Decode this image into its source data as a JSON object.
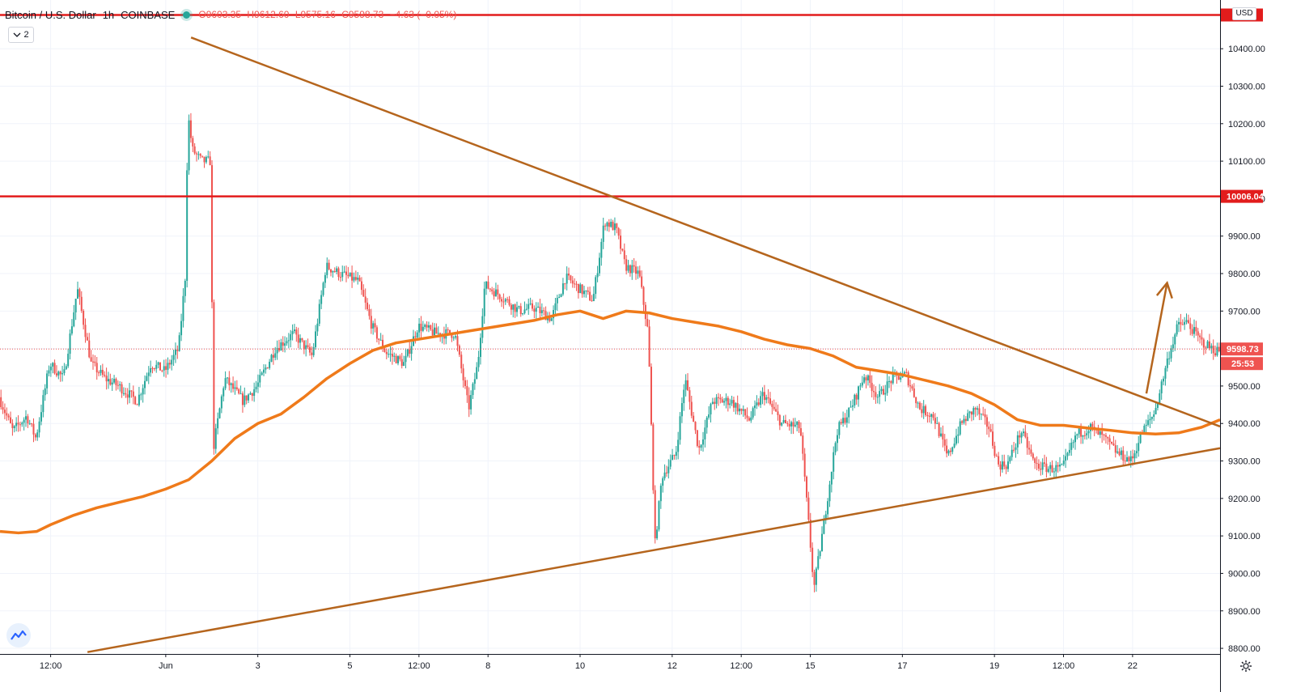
{
  "header": {
    "symbol": "Bitcoin / U.S. Dollar",
    "interval": "1h",
    "exchange": "COINBASE",
    "open": "O9603.35",
    "high": "H9612.60",
    "low": "L9575.16",
    "close": "C9598.73",
    "change": "−4.63 (−0.05%)",
    "indicator_count": "2"
  },
  "currency_label": "USD",
  "icons": {
    "logo": "tradingview-icon",
    "settings": "gear-icon",
    "collapse": "chevron-down-icon"
  },
  "colors": {
    "up": "#26a69a",
    "down": "#ef5350",
    "ma": "#ef7a1a",
    "trendline": "#b5651d",
    "resistance": "#e21c1c",
    "price_line": "#ef5350"
  },
  "chart_data": {
    "type": "candlestick",
    "symbol": "Bitcoin / U.S. Dollar",
    "timeframe": "1h",
    "ylim": [
      8785,
      10530
    ],
    "y_ticks": [
      8800,
      8900,
      9000,
      9100,
      9200,
      9300,
      9400,
      9500,
      9600,
      9700,
      9800,
      9900,
      10000,
      10100,
      10200,
      10300,
      10400
    ],
    "y_tick_labels": [
      "8800.00",
      "8900.00",
      "9000.00",
      "9100.00",
      "9200.00",
      "9300.00",
      "9400.00",
      "9500.00",
      "9600.00",
      "9700.00",
      "9800.00",
      "9900.00",
      "10000.00",
      "10100.00",
      "10200.00",
      "10300.00",
      "10400.00"
    ],
    "x_range_days": [
      -2.6,
      23.9
    ],
    "x_ticks": [
      {
        "label": "12:00",
        "day": -1.5
      },
      {
        "label": "Jun",
        "day": 1
      },
      {
        "label": "3",
        "day": 3
      },
      {
        "label": "5",
        "day": 5
      },
      {
        "label": "12:00",
        "day": 6.5
      },
      {
        "label": "8",
        "day": 8
      },
      {
        "label": "10",
        "day": 10
      },
      {
        "label": "12",
        "day": 12
      },
      {
        "label": "12:00",
        "day": 13.5
      },
      {
        "label": "15",
        "day": 15
      },
      {
        "label": "17",
        "day": 17
      },
      {
        "label": "19",
        "day": 19
      },
      {
        "label": "12:00",
        "day": 20.5
      },
      {
        "label": "22",
        "day": 22
      }
    ],
    "price_path": [
      [
        -2.6,
        9470
      ],
      [
        -2.3,
        9380
      ],
      [
        -2.0,
        9420
      ],
      [
        -1.8,
        9360
      ],
      [
        -1.5,
        9560
      ],
      [
        -1.2,
        9520
      ],
      [
        -0.9,
        9760
      ],
      [
        -0.6,
        9560
      ],
      [
        -0.3,
        9520
      ],
      [
        0.0,
        9500
      ],
      [
        0.4,
        9460
      ],
      [
        0.7,
        9560
      ],
      [
        1.0,
        9540
      ],
      [
        1.3,
        9600
      ],
      [
        1.45,
        9800
      ],
      [
        1.5,
        10230
      ],
      [
        1.6,
        10130
      ],
      [
        1.8,
        10100
      ],
      [
        2.0,
        10100
      ],
      [
        2.05,
        9330
      ],
      [
        2.3,
        9520
      ],
      [
        2.7,
        9460
      ],
      [
        3.0,
        9500
      ],
      [
        3.4,
        9600
      ],
      [
        3.8,
        9640
      ],
      [
        4.2,
        9580
      ],
      [
        4.5,
        9820
      ],
      [
        4.8,
        9800
      ],
      [
        5.2,
        9780
      ],
      [
        5.5,
        9660
      ],
      [
        5.8,
        9590
      ],
      [
        6.2,
        9560
      ],
      [
        6.5,
        9660
      ],
      [
        6.9,
        9640
      ],
      [
        7.3,
        9640
      ],
      [
        7.6,
        9440
      ],
      [
        7.8,
        9560
      ],
      [
        7.95,
        9770
      ],
      [
        8.3,
        9740
      ],
      [
        8.7,
        9700
      ],
      [
        9.0,
        9710
      ],
      [
        9.4,
        9680
      ],
      [
        9.7,
        9790
      ],
      [
        10.0,
        9760
      ],
      [
        10.3,
        9730
      ],
      [
        10.55,
        9940
      ],
      [
        10.8,
        9920
      ],
      [
        11.0,
        9820
      ],
      [
        11.3,
        9800
      ],
      [
        11.5,
        9640
      ],
      [
        11.65,
        9080
      ],
      [
        11.8,
        9260
      ],
      [
        12.1,
        9320
      ],
      [
        12.3,
        9520
      ],
      [
        12.6,
        9330
      ],
      [
        12.9,
        9460
      ],
      [
        13.3,
        9460
      ],
      [
        13.7,
        9410
      ],
      [
        14.0,
        9480
      ],
      [
        14.4,
        9400
      ],
      [
        14.8,
        9390
      ],
      [
        15.0,
        9110
      ],
      [
        15.1,
        8960
      ],
      [
        15.3,
        9120
      ],
      [
        15.6,
        9380
      ],
      [
        15.9,
        9440
      ],
      [
        16.2,
        9530
      ],
      [
        16.5,
        9470
      ],
      [
        16.8,
        9520
      ],
      [
        17.1,
        9530
      ],
      [
        17.4,
        9440
      ],
      [
        17.7,
        9420
      ],
      [
        18.0,
        9310
      ],
      [
        18.3,
        9400
      ],
      [
        18.6,
        9440
      ],
      [
        18.9,
        9390
      ],
      [
        19.1,
        9290
      ],
      [
        19.3,
        9290
      ],
      [
        19.6,
        9380
      ],
      [
        19.9,
        9290
      ],
      [
        20.2,
        9280
      ],
      [
        20.5,
        9280
      ],
      [
        20.8,
        9370
      ],
      [
        21.1,
        9390
      ],
      [
        21.4,
        9360
      ],
      [
        21.7,
        9320
      ],
      [
        22.0,
        9300
      ],
      [
        22.2,
        9370
      ],
      [
        22.5,
        9430
      ],
      [
        22.8,
        9580
      ],
      [
        23.0,
        9660
      ],
      [
        23.2,
        9670
      ],
      [
        23.5,
        9620
      ],
      [
        23.8,
        9595
      ]
    ],
    "series": [
      {
        "type": "moving-average",
        "points": [
          [
            -2.6,
            9112
          ],
          [
            -2.2,
            9108
          ],
          [
            -1.8,
            9112
          ],
          [
            -1.5,
            9130
          ],
          [
            -1.0,
            9155
          ],
          [
            -0.5,
            9175
          ],
          [
            0.0,
            9190
          ],
          [
            0.5,
            9205
          ],
          [
            1.0,
            9225
          ],
          [
            1.5,
            9250
          ],
          [
            2.0,
            9300
          ],
          [
            2.5,
            9360
          ],
          [
            3.0,
            9400
          ],
          [
            3.5,
            9425
          ],
          [
            4.0,
            9470
          ],
          [
            4.5,
            9520
          ],
          [
            5.0,
            9560
          ],
          [
            5.5,
            9595
          ],
          [
            6.0,
            9615
          ],
          [
            6.5,
            9625
          ],
          [
            7.0,
            9635
          ],
          [
            7.5,
            9645
          ],
          [
            8.0,
            9655
          ],
          [
            8.5,
            9665
          ],
          [
            9.0,
            9675
          ],
          [
            9.5,
            9690
          ],
          [
            10.0,
            9700
          ],
          [
            10.5,
            9680
          ],
          [
            11.0,
            9700
          ],
          [
            11.5,
            9695
          ],
          [
            12.0,
            9680
          ],
          [
            12.5,
            9670
          ],
          [
            13.0,
            9660
          ],
          [
            13.5,
            9645
          ],
          [
            14.0,
            9625
          ],
          [
            14.5,
            9610
          ],
          [
            15.0,
            9600
          ],
          [
            15.5,
            9580
          ],
          [
            16.0,
            9550
          ],
          [
            16.5,
            9540
          ],
          [
            17.0,
            9530
          ],
          [
            17.5,
            9515
          ],
          [
            18.0,
            9500
          ],
          [
            18.5,
            9480
          ],
          [
            19.0,
            9450
          ],
          [
            19.5,
            9410
          ],
          [
            20.0,
            9395
          ],
          [
            20.5,
            9395
          ],
          [
            21.0,
            9388
          ],
          [
            21.5,
            9382
          ],
          [
            22.0,
            9375
          ],
          [
            22.5,
            9372
          ],
          [
            23.0,
            9375
          ],
          [
            23.5,
            9390
          ],
          [
            23.9,
            9410
          ]
        ]
      }
    ],
    "annotations": {
      "resistance_levels": [
        10006.04,
        10490
      ],
      "resistance_label": "10006.04",
      "last_price": 9598.73,
      "last_price_label": "9598.73",
      "countdown_label": "25:53",
      "descending_trendline": [
        [
          1.55,
          10430
        ],
        [
          23.9,
          9392
        ]
      ],
      "ascending_trendline": [
        [
          -0.7,
          8790
        ],
        [
          23.9,
          9334
        ]
      ],
      "arrow": {
        "from": [
          22.3,
          9480
        ],
        "to": [
          22.75,
          9775
        ]
      }
    },
    "grid": true
  }
}
